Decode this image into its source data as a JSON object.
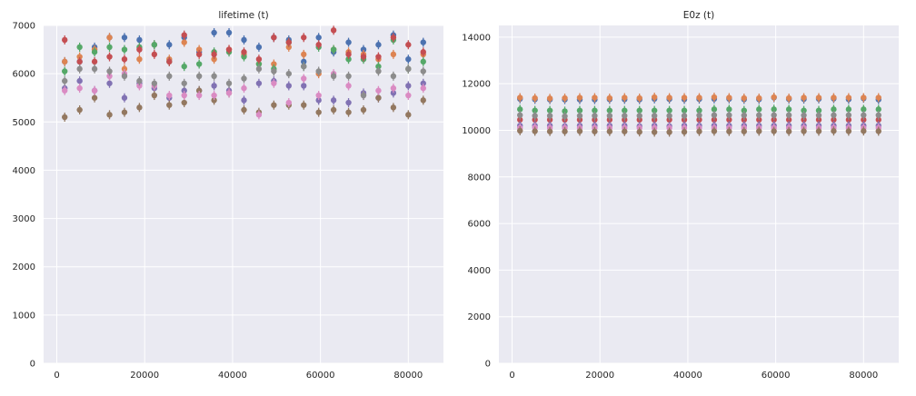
{
  "chart_data": [
    {
      "type": "scatter",
      "title": "lifetime (t)",
      "xlim": [
        -3000,
        88000
      ],
      "ylim": [
        0,
        7000
      ],
      "xticks": [
        0,
        20000,
        40000,
        60000,
        80000
      ],
      "yticks": [
        0,
        1000,
        2000,
        3000,
        4000,
        5000,
        6000,
        7000
      ],
      "grid": true,
      "x": [
        1800,
        5200,
        8600,
        12000,
        15400,
        18800,
        22200,
        25600,
        29000,
        32400,
        35800,
        39200,
        42600,
        46000,
        49400,
        52800,
        56200,
        59600,
        63000,
        66400,
        69800,
        73200,
        76600,
        80000,
        83400
      ],
      "series": [
        {
          "color": "#4c72b0",
          "values": [
            6250,
            6250,
            6550,
            6750,
            6750,
            6700,
            6600,
            6600,
            6750,
            6450,
            6850,
            6850,
            6700,
            6550,
            6750,
            6700,
            6250,
            6750,
            6450,
            6650,
            6500,
            6600,
            6800,
            6300,
            6650
          ]
        },
        {
          "color": "#dd8452",
          "values": [
            6250,
            6350,
            6500,
            6750,
            6100,
            6300,
            6600,
            6300,
            6650,
            6500,
            6300,
            6500,
            6400,
            6200,
            6200,
            6550,
            6400,
            6000,
            6500,
            6450,
            6400,
            6300,
            6400,
            6100,
            6400
          ]
        },
        {
          "color": "#55a868",
          "values": [
            6050,
            6550,
            6450,
            6550,
            6500,
            6550,
            6600,
            6250,
            6150,
            6200,
            6450,
            6450,
            6350,
            6200,
            6100,
            6650,
            6150,
            6550,
            6500,
            6300,
            6300,
            6150,
            6700,
            6100,
            6250
          ]
        },
        {
          "color": "#c44e52",
          "values": [
            6700,
            6250,
            6250,
            6350,
            6300,
            6500,
            6400,
            6250,
            6800,
            6400,
            6400,
            6500,
            6450,
            6300,
            6750,
            6650,
            6750,
            6600,
            6900,
            6400,
            6350,
            6350,
            6750,
            6600,
            6450
          ]
        },
        {
          "color": "#8172b3",
          "values": [
            5700,
            5850,
            5650,
            5800,
            5500,
            5800,
            5700,
            5500,
            5650,
            5650,
            5750,
            5650,
            5450,
            5800,
            5850,
            5750,
            5750,
            5450,
            5450,
            5400,
            5600,
            5500,
            5600,
            5750,
            5800
          ]
        },
        {
          "color": "#937860",
          "values": [
            5100,
            5250,
            5500,
            5150,
            5200,
            5300,
            5550,
            5350,
            5400,
            5650,
            5450,
            5600,
            5250,
            5200,
            5350,
            5350,
            5350,
            5200,
            5250,
            5200,
            5250,
            5500,
            5300,
            5150,
            5450
          ]
        },
        {
          "color": "#da8bc3",
          "values": [
            5650,
            5700,
            5650,
            5950,
            6000,
            5750,
            5750,
            5550,
            5550,
            5550,
            5550,
            5600,
            5700,
            5150,
            5800,
            5400,
            5900,
            5550,
            6000,
            5750,
            5550,
            5650,
            5700,
            5550,
            5700
          ]
        },
        {
          "color": "#8c8c8c",
          "values": [
            5850,
            6100,
            6100,
            6050,
            5950,
            5850,
            5800,
            5950,
            5800,
            5950,
            5950,
            5800,
            5900,
            6100,
            6050,
            6000,
            6150,
            6050,
            5950,
            5950,
            5550,
            6050,
            5950,
            6100,
            6050
          ]
        }
      ]
    },
    {
      "type": "scatter",
      "title": "E0z (t)",
      "xlim": [
        -3000,
        88000
      ],
      "ylim": [
        0,
        14500
      ],
      "xticks": [
        0,
        20000,
        40000,
        60000,
        80000
      ],
      "yticks": [
        0,
        2000,
        4000,
        6000,
        8000,
        10000,
        12000,
        14000
      ],
      "grid": true,
      "x": [
        1800,
        5200,
        8600,
        12000,
        15400,
        18800,
        22200,
        25600,
        29000,
        32400,
        35800,
        39200,
        42600,
        46000,
        49400,
        52800,
        56200,
        59600,
        63000,
        66400,
        69800,
        73200,
        76600,
        80000,
        83400
      ],
      "series": [
        {
          "color": "#4c72b0",
          "values": [
            11350,
            11330,
            11320,
            11320,
            11320,
            11320,
            11330,
            11330,
            11320,
            11350,
            11340,
            11330,
            11340,
            11350,
            11350,
            11330,
            11330,
            11400,
            11340,
            11340,
            11350,
            11360,
            11330,
            11370,
            11320
          ]
        },
        {
          "color": "#dd8452",
          "values": [
            11400,
            11380,
            11370,
            11380,
            11400,
            11400,
            11380,
            11400,
            11380,
            11420,
            11400,
            11400,
            11400,
            11420,
            11400,
            11380,
            11380,
            11420,
            11380,
            11400,
            11400,
            11400,
            11400,
            11400,
            11400
          ]
        },
        {
          "color": "#55a868",
          "values": [
            10900,
            10850,
            10850,
            10820,
            10850,
            10850,
            10850,
            10850,
            10850,
            10850,
            10850,
            10850,
            10850,
            10900,
            10900,
            10850,
            10900,
            10900,
            10900,
            10850,
            10850,
            10900,
            10900,
            10900,
            10900
          ]
        },
        {
          "color": "#c44e52",
          "values": [
            10450,
            10450,
            10450,
            10450,
            10450,
            10450,
            10450,
            10450,
            10450,
            10450,
            10450,
            10450,
            10450,
            10450,
            10450,
            10450,
            10450,
            10450,
            10450,
            10450,
            10450,
            10450,
            10450,
            10450,
            10450
          ]
        },
        {
          "color": "#8c8c8c",
          "values": [
            10650,
            10620,
            10620,
            10600,
            10620,
            10620,
            10620,
            10620,
            10620,
            10620,
            10620,
            10620,
            10640,
            10650,
            10650,
            10640,
            10650,
            10650,
            10650,
            10640,
            10640,
            10650,
            10650,
            10650,
            10650
          ]
        },
        {
          "color": "#8172b3",
          "values": [
            10200,
            10200,
            10200,
            10180,
            10200,
            10200,
            10200,
            10200,
            10180,
            10200,
            10180,
            10200,
            10200,
            10200,
            10200,
            10200,
            10200,
            10200,
            10200,
            10200,
            10200,
            10200,
            10200,
            10200,
            10200
          ]
        },
        {
          "color": "#da8bc3",
          "values": [
            10100,
            10120,
            10100,
            10100,
            10100,
            10100,
            10100,
            10100,
            10100,
            10100,
            10100,
            10100,
            10100,
            10100,
            10100,
            10100,
            10100,
            10100,
            10100,
            10100,
            10100,
            10100,
            10100,
            10100,
            10100
          ]
        },
        {
          "color": "#937860",
          "values": [
            9980,
            9960,
            9950,
            9950,
            9960,
            9950,
            9950,
            9950,
            9930,
            9920,
            9920,
            9930,
            9950,
            9960,
            9950,
            9950,
            9960,
            9960,
            9950,
            9960,
            9960,
            9970,
            9960,
            9970,
            9960
          ]
        }
      ]
    }
  ]
}
